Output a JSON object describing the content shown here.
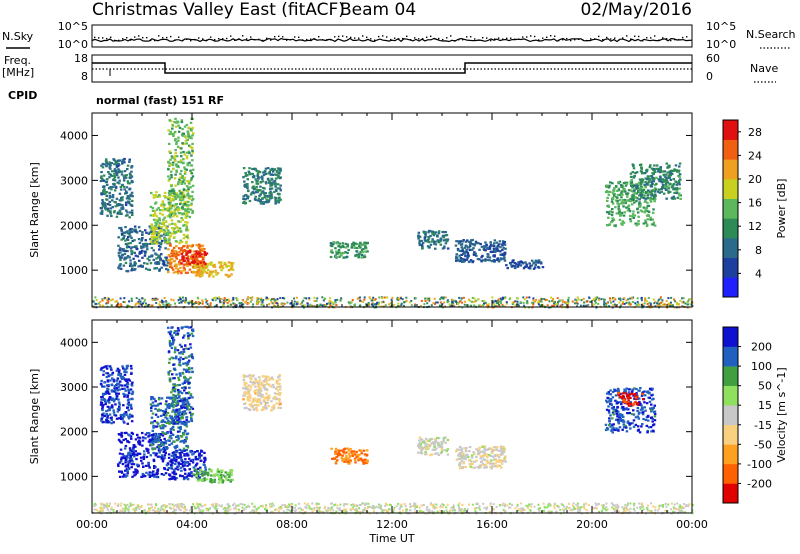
{
  "header": {
    "title": "Christmas Valley East (fitACF)",
    "beam": "Beam 04",
    "date": "02/May/2016"
  },
  "status_panels": {
    "nsky_label": "N.Sky",
    "nsearch_label": "N.Search",
    "left_ticks": [
      "10^5",
      "10^0"
    ],
    "right_ticks": [
      "10^5",
      "10^0"
    ],
    "freq_label": "Freq.",
    "freq_unit": "[MHz]",
    "freq_ticks": [
      "18",
      "8"
    ],
    "nave_label": "Nave",
    "nave_ticks": [
      "60",
      "0"
    ],
    "cpid_label": "CPID",
    "cpid_value": "normal (fast) 151 RF"
  },
  "chart_data": [
    {
      "type": "heatmap",
      "name": "power",
      "xlabel": "",
      "ylabel": "Slant Range [km]",
      "xlim": [
        0,
        24
      ],
      "ylim": [
        180,
        4500
      ],
      "yticks": [
        "1000",
        "2000",
        "3000",
        "4000"
      ],
      "colorbar_label": "Power [dB]",
      "colorbar_ticks": [
        "4",
        "8",
        "12",
        "16",
        "20",
        "24",
        "28"
      ],
      "colorbar_range": [
        0,
        30
      ],
      "colors": [
        "#2020ff",
        "#1d3fa0",
        "#2a6a8a",
        "#2e8b57",
        "#5cb85c",
        "#c8d020",
        "#f0a020",
        "#f06010",
        "#e01010"
      ],
      "features": [
        {
          "t0": 0.3,
          "t1": 1.6,
          "r0": 2200,
          "r1": 3500,
          "v": 9
        },
        {
          "t0": 1.0,
          "t1": 3.0,
          "r0": 1000,
          "r1": 2000,
          "v": 8
        },
        {
          "t0": 2.3,
          "t1": 3.8,
          "r0": 1600,
          "r1": 2800,
          "v": 17
        },
        {
          "t0": 3.0,
          "t1": 4.0,
          "r0": 2200,
          "r1": 4400,
          "v": 15
        },
        {
          "t0": 3.0,
          "t1": 4.5,
          "r0": 950,
          "r1": 1600,
          "v": 24
        },
        {
          "t0": 4.0,
          "t1": 5.6,
          "r0": 880,
          "r1": 1200,
          "v": 20
        },
        {
          "t0": 3.5,
          "t1": 4.6,
          "r0": 1150,
          "r1": 1450,
          "v": 28
        },
        {
          "t0": 6.0,
          "t1": 7.5,
          "r0": 2500,
          "r1": 3300,
          "v": 10
        },
        {
          "t0": 9.5,
          "t1": 11.0,
          "r0": 1300,
          "r1": 1650,
          "v": 12
        },
        {
          "t0": 13.0,
          "t1": 14.2,
          "r0": 1500,
          "r1": 1900,
          "v": 9
        },
        {
          "t0": 14.5,
          "t1": 16.5,
          "r0": 1200,
          "r1": 1700,
          "v": 7
        },
        {
          "t0": 16.5,
          "t1": 18.0,
          "r0": 1050,
          "r1": 1250,
          "v": 6
        },
        {
          "t0": 20.5,
          "t1": 22.5,
          "r0": 2000,
          "r1": 3000,
          "v": 14
        },
        {
          "t0": 21.5,
          "t1": 23.5,
          "r0": 2600,
          "r1": 3400,
          "v": 11
        }
      ],
      "ground_band": {
        "r0": 190,
        "r1": 420,
        "v_min": 4,
        "v_max": 26
      }
    },
    {
      "type": "heatmap",
      "name": "velocity",
      "xlabel": "Time UT",
      "ylabel": "Slant Range [km]",
      "xlim": [
        0,
        24
      ],
      "ylim": [
        180,
        4500
      ],
      "xticks": [
        "00:00",
        "04:00",
        "08:00",
        "12:00",
        "16:00",
        "20:00",
        "00:00"
      ],
      "yticks": [
        "1000",
        "2000",
        "3000",
        "4000"
      ],
      "colorbar_label": "Velocity [m s^-1]",
      "colorbar_ticks": [
        "200",
        "100",
        "50",
        "15",
        "-15",
        "-50",
        "-100",
        "-200"
      ],
      "colorbar_range": [
        -250,
        250
      ],
      "colors": [
        "#e00000",
        "#ff6000",
        "#ffa020",
        "#f8d080",
        "#c8c8c8",
        "#90e060",
        "#40a040",
        "#2060c0",
        "#1010d0"
      ],
      "features": [
        {
          "t0": 0.3,
          "t1": 1.6,
          "r0": 2200,
          "r1": 3500,
          "v": 190
        },
        {
          "t0": 1.0,
          "t1": 3.0,
          "r0": 1000,
          "r1": 2000,
          "v": 220
        },
        {
          "t0": 2.3,
          "t1": 3.8,
          "r0": 1600,
          "r1": 2800,
          "v": 160
        },
        {
          "t0": 3.0,
          "t1": 4.0,
          "r0": 2200,
          "r1": 4400,
          "v": 170
        },
        {
          "t0": 3.0,
          "t1": 4.5,
          "r0": 950,
          "r1": 1600,
          "v": 210
        },
        {
          "t0": 4.0,
          "t1": 5.6,
          "r0": 880,
          "r1": 1200,
          "v": 90
        },
        {
          "t0": 6.0,
          "t1": 7.5,
          "r0": 2500,
          "r1": 3300,
          "v": -40
        },
        {
          "t0": 9.5,
          "t1": 11.0,
          "r0": 1300,
          "r1": 1650,
          "v": -150
        },
        {
          "t0": 13.0,
          "t1": 14.2,
          "r0": 1500,
          "r1": 1900,
          "v": 0
        },
        {
          "t0": 14.5,
          "t1": 16.5,
          "r0": 1200,
          "r1": 1700,
          "v": -10
        },
        {
          "t0": 20.5,
          "t1": 22.5,
          "r0": 2000,
          "r1": 3000,
          "v": 180
        },
        {
          "t0": 21.0,
          "t1": 22.0,
          "r0": 2600,
          "r1": 2900,
          "v": -200
        }
      ],
      "ground_band": {
        "r0": 190,
        "r1": 420,
        "v_min": -60,
        "v_max": 60
      }
    }
  ]
}
